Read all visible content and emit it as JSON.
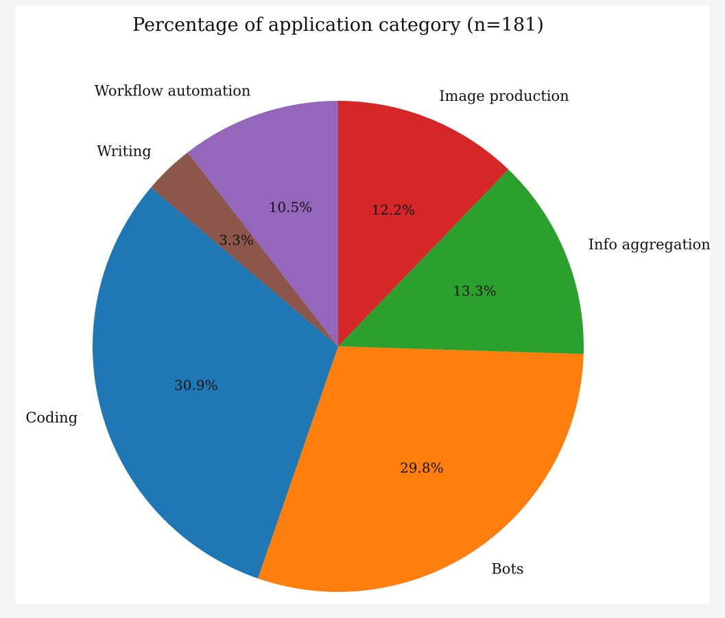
{
  "chart_data": {
    "type": "pie",
    "title": "Percentage of application category (n=181)",
    "categories": [
      "Image production",
      "Info aggregation",
      "Bots",
      "Coding",
      "Writing",
      "Workflow automation"
    ],
    "values": [
      12.2,
      13.3,
      29.8,
      30.9,
      3.3,
      10.5
    ],
    "value_labels": [
      "12.2%",
      "13.3%",
      "29.8%",
      "30.9%",
      "3.3%",
      "10.5%"
    ],
    "colors": [
      "#d62728",
      "#2ca02c",
      "#ff7f0e",
      "#1f77b4",
      "#8c564b",
      "#9467bd"
    ],
    "start": "top",
    "direction": "clockwise"
  }
}
